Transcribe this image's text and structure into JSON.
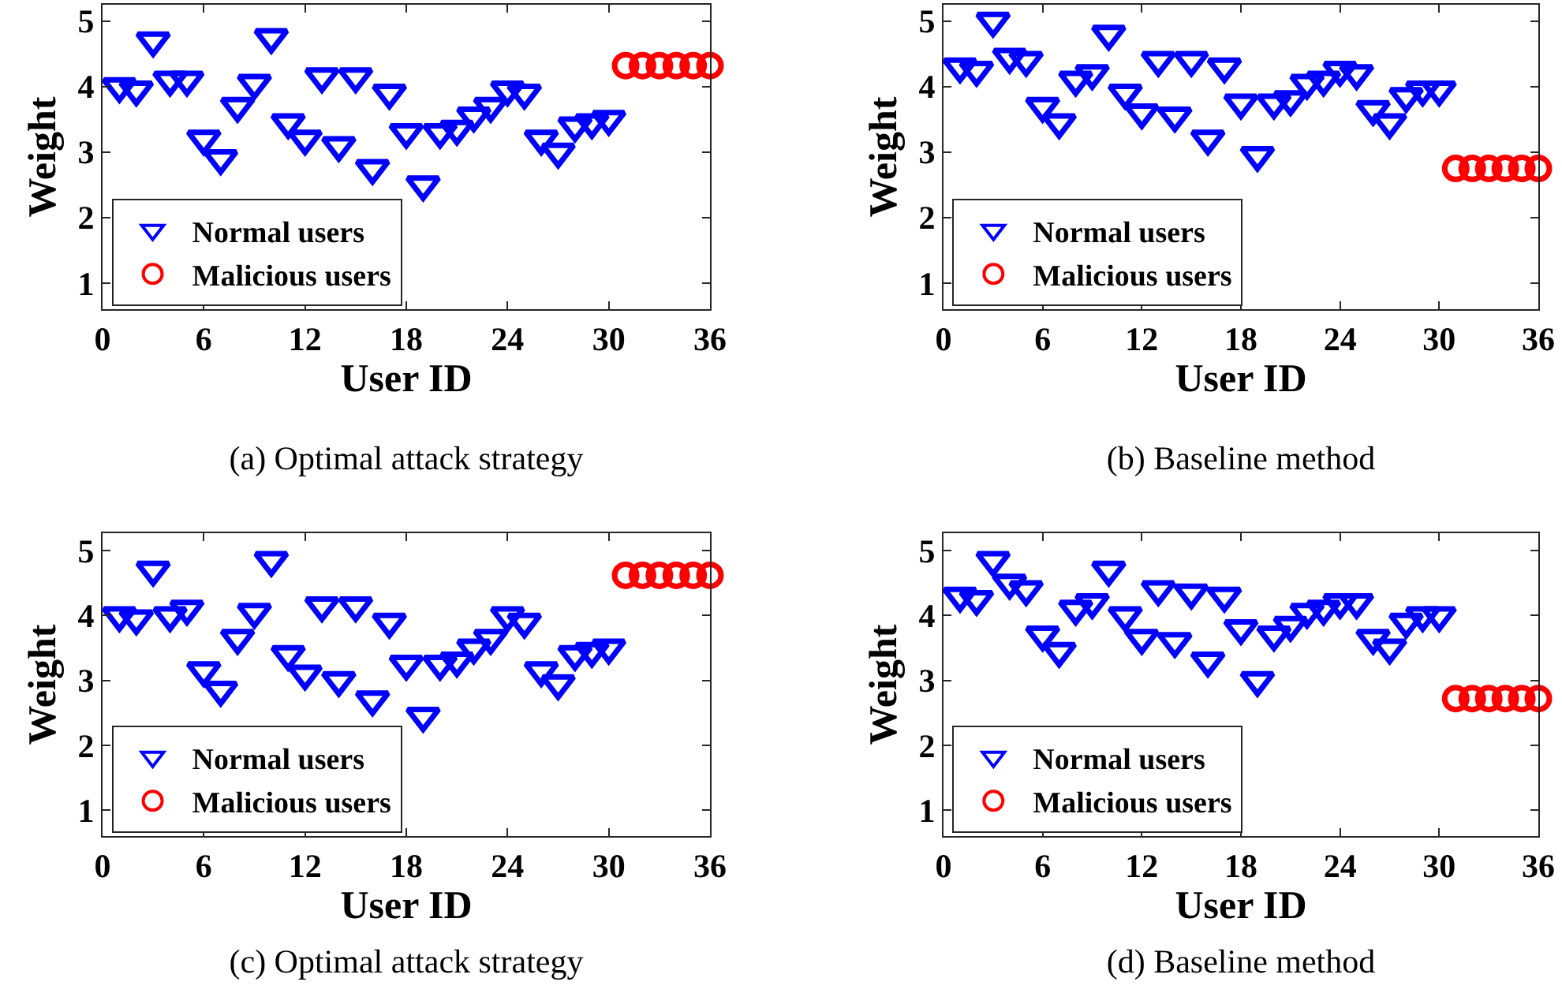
{
  "chart_data": [
    {
      "type": "scatter",
      "title": "(a) Optimal attack strategy",
      "xlabel": "User ID",
      "ylabel": "Weight",
      "xlim": [
        0,
        36
      ],
      "xticks": [
        0,
        6,
        12,
        18,
        24,
        30,
        36
      ],
      "ylim": [
        0.6,
        5.25
      ],
      "yticks": [
        1,
        2,
        3,
        4,
        5
      ],
      "grid": false,
      "legend": "bottom left",
      "series": [
        {
          "name": "Normal users",
          "color": "#0000ff",
          "marker": "triangle",
          "x": [
            1,
            2,
            3,
            4,
            5,
            6,
            7,
            8,
            9,
            10,
            11,
            12,
            13,
            14,
            15,
            16,
            17,
            18,
            19,
            20,
            21,
            22,
            23,
            24,
            25,
            26,
            27,
            28,
            29,
            30
          ],
          "values": [
            4.0,
            3.95,
            4.7,
            4.1,
            4.1,
            3.2,
            2.9,
            3.7,
            4.05,
            4.75,
            3.45,
            3.2,
            4.15,
            3.1,
            4.15,
            2.75,
            3.9,
            3.3,
            2.5,
            3.3,
            3.35,
            3.55,
            3.7,
            3.95,
            3.9,
            3.2,
            3.0,
            3.4,
            3.45,
            3.5
          ]
        },
        {
          "name": "Malicious users",
          "color": "#ff0000",
          "marker": "circle",
          "x": [
            31,
            32,
            33,
            34,
            35,
            36
          ],
          "values": [
            4.32,
            4.32,
            4.32,
            4.32,
            4.32,
            4.32
          ]
        }
      ]
    },
    {
      "type": "scatter",
      "title": "(b) Baseline method",
      "xlabel": "User ID",
      "ylabel": "Weight",
      "xlim": [
        0,
        36
      ],
      "xticks": [
        0,
        6,
        12,
        18,
        24,
        30,
        36
      ],
      "ylim": [
        0.6,
        5.25
      ],
      "yticks": [
        1,
        2,
        3,
        4,
        5
      ],
      "grid": false,
      "legend": "bottom left",
      "series": [
        {
          "name": "Normal users",
          "color": "#0000ff",
          "marker": "triangle",
          "x": [
            1,
            2,
            3,
            4,
            5,
            6,
            7,
            8,
            9,
            10,
            11,
            12,
            13,
            14,
            15,
            16,
            17,
            18,
            19,
            20,
            21,
            22,
            23,
            24,
            25,
            26,
            27,
            28,
            29,
            30
          ],
          "values": [
            4.3,
            4.25,
            5.0,
            4.45,
            4.4,
            3.7,
            3.45,
            4.1,
            4.2,
            4.8,
            3.9,
            3.6,
            4.4,
            3.55,
            4.4,
            3.2,
            4.3,
            3.75,
            2.95,
            3.75,
            3.8,
            4.05,
            4.1,
            4.25,
            4.2,
            3.65,
            3.45,
            3.85,
            3.95,
            3.95
          ]
        },
        {
          "name": "Malicious users",
          "color": "#ff0000",
          "marker": "circle",
          "x": [
            31,
            32,
            33,
            34,
            35,
            36
          ],
          "values": [
            2.75,
            2.75,
            2.75,
            2.75,
            2.75,
            2.75
          ]
        }
      ]
    },
    {
      "type": "scatter",
      "title": "(c) Optimal attack strategy",
      "xlabel": "User ID",
      "ylabel": "Weight",
      "xlim": [
        0,
        36
      ],
      "xticks": [
        0,
        6,
        12,
        18,
        24,
        30,
        36
      ],
      "ylim": [
        0.6,
        5.27
      ],
      "yticks": [
        1,
        2,
        3,
        4,
        5
      ],
      "grid": false,
      "legend": "bottom left",
      "series": [
        {
          "name": "Normal users",
          "color": "#0000ff",
          "marker": "triangle",
          "x": [
            1,
            2,
            3,
            4,
            5,
            6,
            7,
            8,
            9,
            10,
            11,
            12,
            13,
            14,
            15,
            16,
            17,
            18,
            19,
            20,
            21,
            22,
            23,
            24,
            25,
            26,
            27,
            28,
            29,
            30
          ],
          "values": [
            4.0,
            3.95,
            4.7,
            4.0,
            4.1,
            3.15,
            2.85,
            3.65,
            4.05,
            4.85,
            3.4,
            3.1,
            4.15,
            3.0,
            4.15,
            2.7,
            3.9,
            3.25,
            2.45,
            3.25,
            3.3,
            3.5,
            3.65,
            4.0,
            3.9,
            3.15,
            2.95,
            3.4,
            3.45,
            3.5
          ]
        },
        {
          "name": "Malicious users",
          "color": "#ff0000",
          "marker": "circle",
          "x": [
            31,
            32,
            33,
            34,
            35,
            36
          ],
          "values": [
            4.62,
            4.62,
            4.62,
            4.62,
            4.62,
            4.62
          ]
        }
      ]
    },
    {
      "type": "scatter",
      "title": "(d) Baseline method",
      "xlabel": "User ID",
      "ylabel": "Weight",
      "xlim": [
        0,
        36
      ],
      "xticks": [
        0,
        6,
        12,
        18,
        24,
        30,
        36
      ],
      "ylim": [
        0.6,
        5.27
      ],
      "yticks": [
        1,
        2,
        3,
        4,
        5
      ],
      "grid": false,
      "legend": "bottom left",
      "series": [
        {
          "name": "Normal users",
          "color": "#0000ff",
          "marker": "triangle",
          "x": [
            1,
            2,
            3,
            4,
            5,
            6,
            7,
            8,
            9,
            10,
            11,
            12,
            13,
            14,
            15,
            16,
            17,
            18,
            19,
            20,
            21,
            22,
            23,
            24,
            25,
            26,
            27,
            28,
            29,
            30
          ],
          "values": [
            4.3,
            4.25,
            4.85,
            4.5,
            4.4,
            3.7,
            3.45,
            4.1,
            4.2,
            4.7,
            4.0,
            3.65,
            4.4,
            3.6,
            4.35,
            3.3,
            4.3,
            3.8,
            3.0,
            3.7,
            3.85,
            4.05,
            4.1,
            4.2,
            4.2,
            3.65,
            3.5,
            3.9,
            4.0,
            4.0
          ]
        },
        {
          "name": "Malicious users",
          "color": "#ff0000",
          "marker": "circle",
          "x": [
            31,
            32,
            33,
            34,
            35,
            36
          ],
          "values": [
            2.72,
            2.72,
            2.72,
            2.72,
            2.72,
            2.72
          ]
        }
      ]
    }
  ]
}
